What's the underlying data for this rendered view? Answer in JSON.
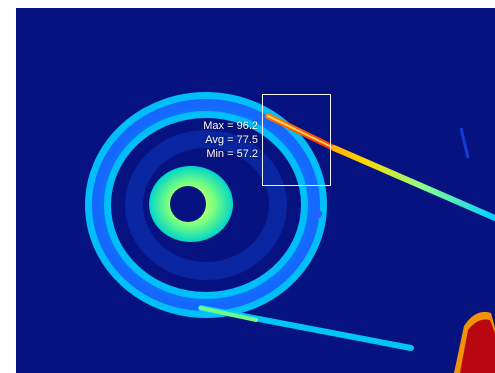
{
  "measurement": {
    "max_text": "Max = 96.2",
    "avg_text": "Avg = 77.5",
    "min_text": "Min = 57.2"
  },
  "colors": {
    "background": "#06127f",
    "cool": "#00c8ff",
    "warm": "#7dff7d",
    "hot": "#ff3b00",
    "very_hot": "#b40012"
  }
}
